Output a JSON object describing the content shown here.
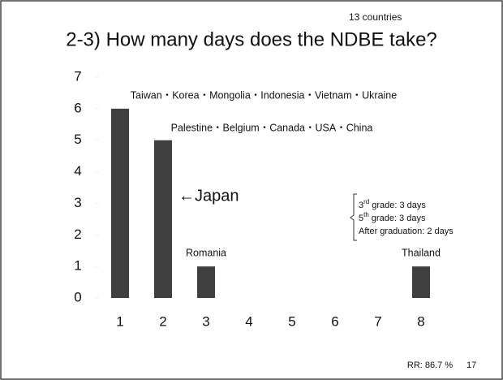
{
  "chart_data": {
    "type": "bar",
    "note_top": "13 countries",
    "title": "2-3) How many days does the NDBE take?",
    "categories": [
      "1",
      "2",
      "3",
      "4",
      "5",
      "6",
      "7",
      "8"
    ],
    "values": [
      6,
      5,
      1,
      0,
      0,
      0,
      0,
      1
    ],
    "color": "#3f3f3f",
    "ylim": [
      0,
      7
    ],
    "yticks": [
      0,
      1,
      2,
      3,
      4,
      5,
      6,
      7
    ],
    "annotations": {
      "bar1": "Taiwan・Korea・Mongolia・Indonesia・Vietnam・Ukraine",
      "bar2": "Palestine・Belgium・Canada・USA・China",
      "japan": "←Japan",
      "bar3": "Romania",
      "bar8": "Thailand",
      "thailand_detail": [
        {
          "num": "3",
          "sup": "rd",
          "rest": "grade: 3 days"
        },
        {
          "num": "5",
          "sup": "th",
          "rest": "grade: 3 days"
        },
        {
          "rest": "After graduation: 2 days"
        }
      ]
    },
    "footer": {
      "rr": "RR: 86.7 %",
      "page": "17"
    }
  }
}
